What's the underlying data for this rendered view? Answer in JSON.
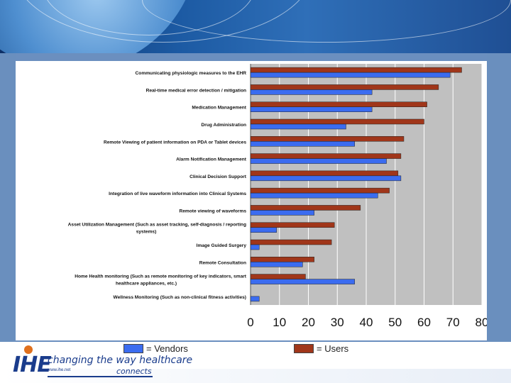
{
  "legend": {
    "vendors_label": "= Vendors",
    "users_label": "= Users",
    "vendors_color": "#3b6cf0",
    "users_color": "#a0361a"
  },
  "logo": {
    "brand": "IHE",
    "tagline": "changing the way healthcare",
    "url": "www.ihe.net",
    "connects": "connects"
  },
  "chart_data": {
    "type": "bar",
    "orientation": "horizontal",
    "categories": [
      "Communicating physiologic measures to the EHR",
      "Real-time medical error detection / mitigation",
      "Medication Management",
      "Drug Administration",
      "Remote Viewing of patient information on PDA or Tablet devices",
      "Alarm Notification Management",
      "Clinical Decision Support",
      "Integration of live waveform information into Clinical Systems",
      "Remote viewing of waveforms",
      "Asset Utilization Management (Such as asset tracking, self-diagnosis / reporting systems)",
      "Image Guided Surgery",
      "Remote Consultation",
      "Home Health monitoring (Such as remote monitoring of key indicators, smart healthcare appliances, etc.)",
      "Wellness Monitoring (Such as non-clinical fitness activities)"
    ],
    "category_lines": [
      [
        "Communicating physiologic measures to the EHR"
      ],
      [
        "Real-time medical error detection / mitigation"
      ],
      [
        "Medication Management"
      ],
      [
        "Drug Administration"
      ],
      [
        "Remote Viewing of patient information on PDA or Tablet devices"
      ],
      [
        "Alarm Notification Management"
      ],
      [
        "Clinical Decision Support"
      ],
      [
        "Integration of live waveform information into Clinical Systems"
      ],
      [
        "Remote viewing of waveforms"
      ],
      [
        "Asset Utilization Management (Such as asset tracking, self-diagnosis / reporting",
        "systems)"
      ],
      [
        "Image Guided Surgery"
      ],
      [
        "Remote Consultation"
      ],
      [
        "Home Health monitoring (Such as remote monitoring of key indicators, smart",
        "healthcare appliances, etc.)"
      ],
      [
        "Wellness Monitoring (Such as non-clinical fitness activities)"
      ]
    ],
    "series": [
      {
        "name": "Users",
        "color": "#a0361a",
        "values": [
          73,
          65,
          61,
          60,
          53,
          52,
          51,
          48,
          38,
          29,
          28,
          22,
          19,
          0
        ]
      },
      {
        "name": "Vendors",
        "color": "#3b6cf0",
        "values": [
          69,
          42,
          42,
          33,
          36,
          47,
          52,
          44,
          22,
          9,
          3,
          18,
          36,
          3
        ]
      }
    ],
    "xlim": [
      0,
      80
    ],
    "xticks": [
      0,
      10,
      20,
      30,
      40,
      50,
      60,
      70,
      80
    ],
    "grid": true,
    "plot_background": "#c0c0c0",
    "legend_placement": "bottom"
  }
}
